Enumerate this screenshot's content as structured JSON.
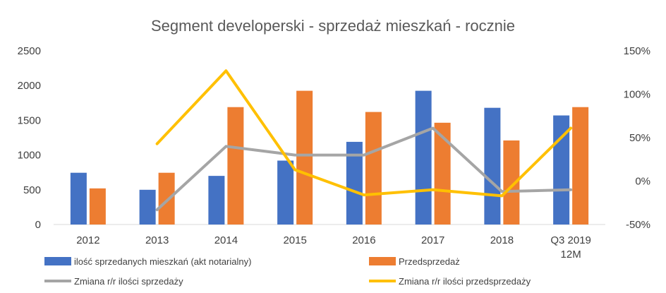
{
  "chart_data": {
    "type": "bar",
    "title": "Segment developerski - sprzedaż mieszkań - rocznie",
    "categories": [
      "2012",
      "2013",
      "2014",
      "2015",
      "2016",
      "2017",
      "2018",
      "Q3 2019 12M"
    ],
    "category_lines": [
      [
        "2012"
      ],
      [
        "2013"
      ],
      [
        "2014"
      ],
      [
        "2015"
      ],
      [
        "2016"
      ],
      [
        "2017"
      ],
      [
        "2018"
      ],
      [
        "Q3 2019",
        "12M"
      ]
    ],
    "y_left": {
      "lim": [
        0,
        2500
      ],
      "ticks": [
        "0",
        "500",
        "1000",
        "1500",
        "2000",
        "2500"
      ]
    },
    "y_right": {
      "lim": [
        -0.5,
        1.5
      ],
      "ticks": [
        "-50%",
        "0%",
        "50%",
        "100%",
        "150%"
      ]
    },
    "grid": false,
    "legend_position": "bottom",
    "bar_series": [
      {
        "name": "ilość sprzedanych mieszkań (akt notarialny)",
        "color": "#4472C4",
        "values": [
          745,
          500,
          700,
          920,
          1190,
          1925,
          1680,
          1570
        ]
      },
      {
        "name": "Przedsprzedaż",
        "color": "#ED7D31",
        "values": [
          520,
          745,
          1690,
          1925,
          1620,
          1465,
          1210,
          1690
        ]
      }
    ],
    "line_series": [
      {
        "name": "Zmiana r/r ilości sprzedaży",
        "color": "#A5A5A5",
        "axis": "right",
        "values": [
          null,
          -0.33,
          0.4,
          0.3,
          0.3,
          0.61,
          -0.12,
          -0.1
        ]
      },
      {
        "name": "Zmiana r/r ilości przedsprzedaży",
        "color": "#FFC000",
        "axis": "right",
        "values": [
          null,
          0.43,
          1.27,
          0.13,
          -0.16,
          -0.1,
          -0.17,
          0.61
        ]
      }
    ]
  }
}
